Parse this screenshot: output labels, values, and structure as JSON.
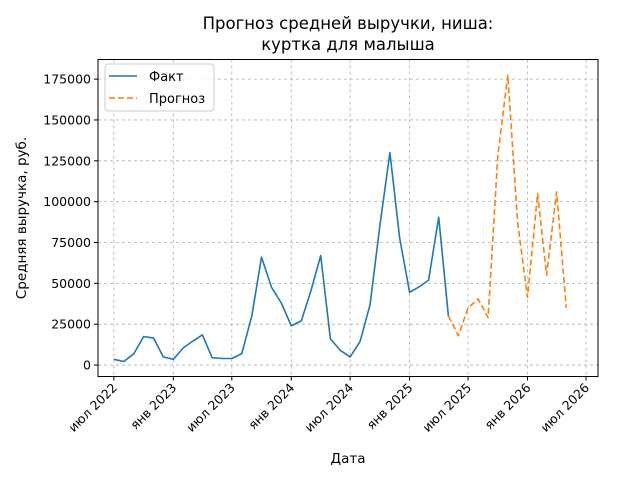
{
  "chart_data": {
    "type": "line",
    "title_lines": [
      "Прогноз средней выручки, ниша:",
      "куртка для малыша"
    ],
    "xlabel": "Дата",
    "ylabel": "Средняя выручка, руб.",
    "ylim": [
      -7000,
      187000
    ],
    "xlim": [
      "2022-05-13",
      "2026-08-07"
    ],
    "yticks": [
      0,
      25000,
      50000,
      75000,
      100000,
      125000,
      150000,
      175000
    ],
    "yticks_labels": [
      "0",
      "25000",
      "50000",
      "75000",
      "100000",
      "125000",
      "150000",
      "175000"
    ],
    "xticks": [
      {
        "date": "2022-07-01",
        "label": "июл 2022"
      },
      {
        "date": "2023-01-01",
        "label": "янв 2023"
      },
      {
        "date": "2023-07-01",
        "label": "июл 2023"
      },
      {
        "date": "2024-01-01",
        "label": "янв 2024"
      },
      {
        "date": "2024-07-01",
        "label": "июл 2024"
      },
      {
        "date": "2025-01-01",
        "label": "янв 2025"
      },
      {
        "date": "2025-07-01",
        "label": "июл 2025"
      },
      {
        "date": "2026-01-01",
        "label": "янв 2026"
      },
      {
        "date": "2026-07-01",
        "label": "июл 2026"
      }
    ],
    "grid": true,
    "legend_position": "top-left",
    "series": [
      {
        "name": "Факт",
        "color": "#1f77b4",
        "style": "solid",
        "points": [
          [
            "2022-07-01",
            3500
          ],
          [
            "2022-08-01",
            2200
          ],
          [
            "2022-09-01",
            7000
          ],
          [
            "2022-10-01",
            17500
          ],
          [
            "2022-11-01",
            16500
          ],
          [
            "2022-12-01",
            5000
          ],
          [
            "2023-01-01",
            3500
          ],
          [
            "2023-02-01",
            10500
          ],
          [
            "2023-03-01",
            14500
          ],
          [
            "2023-04-01",
            18500
          ],
          [
            "2023-05-01",
            4500
          ],
          [
            "2023-06-01",
            4000
          ],
          [
            "2023-07-01",
            4000
          ],
          [
            "2023-08-01",
            7000
          ],
          [
            "2023-09-01",
            30000
          ],
          [
            "2023-10-01",
            66000
          ],
          [
            "2023-11-01",
            47500
          ],
          [
            "2023-12-01",
            38000
          ],
          [
            "2024-01-01",
            24000
          ],
          [
            "2024-02-01",
            27000
          ],
          [
            "2024-03-01",
            45000
          ],
          [
            "2024-04-01",
            67000
          ],
          [
            "2024-05-01",
            16000
          ],
          [
            "2024-06-01",
            9000
          ],
          [
            "2024-07-01",
            5000
          ],
          [
            "2024-08-01",
            14500
          ],
          [
            "2024-09-01",
            37000
          ],
          [
            "2024-10-01",
            85000
          ],
          [
            "2024-11-01",
            130000
          ],
          [
            "2024-12-01",
            78000
          ],
          [
            "2025-01-01",
            44500
          ],
          [
            "2025-02-01",
            48000
          ],
          [
            "2025-03-01",
            52000
          ],
          [
            "2025-04-01",
            90500
          ],
          [
            "2025-05-01",
            30000
          ]
        ]
      },
      {
        "name": "Прогноз",
        "color": "#ff7f0e",
        "style": "dashed",
        "points": [
          [
            "2025-05-01",
            30000
          ],
          [
            "2025-06-01",
            18000
          ],
          [
            "2025-07-01",
            35000
          ],
          [
            "2025-08-01",
            40500
          ],
          [
            "2025-09-01",
            29000
          ],
          [
            "2025-10-01",
            128000
          ],
          [
            "2025-11-01",
            177500
          ],
          [
            "2025-12-01",
            88000
          ],
          [
            "2026-01-01",
            41500
          ],
          [
            "2026-02-01",
            105000
          ],
          [
            "2026-03-01",
            55000
          ],
          [
            "2026-04-01",
            106000
          ],
          [
            "2026-05-01",
            35000
          ]
        ]
      }
    ]
  }
}
